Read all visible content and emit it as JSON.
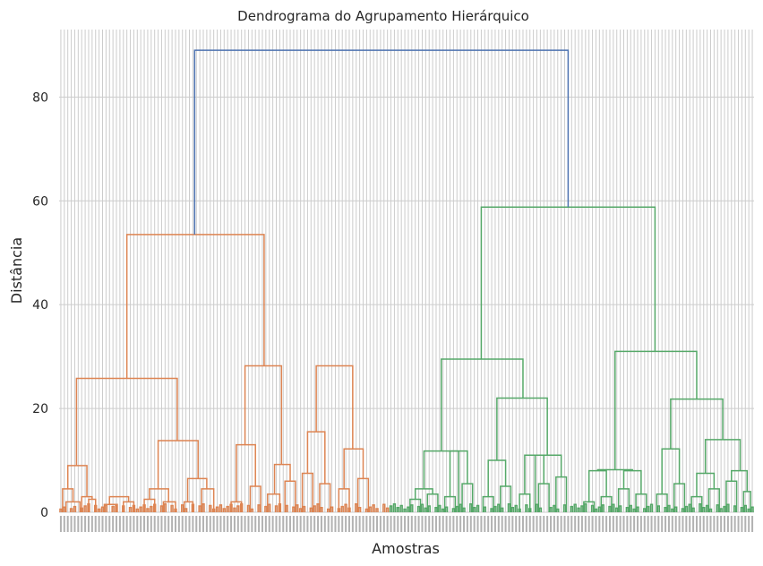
{
  "chart_data": {
    "type": "dendrogram",
    "title": "Dendrograma do Agrupamento Hierárquico",
    "xlabel": "Amostras",
    "ylabel": "Distância",
    "ylim": [
      0,
      93
    ],
    "yticks": [
      0,
      20,
      40,
      60,
      80
    ],
    "grid": true,
    "leaf_count": 200,
    "colors": {
      "cluster_orange": "#dd8452",
      "cluster_green": "#55a868",
      "above_threshold": "#4c72b0",
      "grid": "#cccccc"
    },
    "merges": [
      {
        "x": [
          4,
          12
        ],
        "h": 2,
        "c": "#dd8452"
      },
      {
        "x": [
          2,
          8
        ],
        "h": 4.5,
        "c": "#dd8452"
      },
      {
        "x": [
          17,
          21
        ],
        "h": 2.5,
        "c": "#dd8452"
      },
      {
        "x": [
          13,
          19
        ],
        "h": 3,
        "c": "#dd8452"
      },
      {
        "x": [
          26,
          33
        ],
        "h": 1.5,
        "c": "#dd8452"
      },
      {
        "x": [
          37,
          43
        ],
        "h": 2,
        "c": "#dd8452"
      },
      {
        "x": [
          29,
          40
        ],
        "h": 3,
        "c": "#dd8452"
      },
      {
        "x": [
          5,
          16
        ],
        "h": 9,
        "c": "#dd8452"
      },
      {
        "x": [
          49,
          55
        ],
        "h": 2.5,
        "c": "#dd8452"
      },
      {
        "x": [
          60,
          67
        ],
        "h": 2,
        "c": "#dd8452"
      },
      {
        "x": [
          52,
          63
        ],
        "h": 4.5,
        "c": "#dd8452"
      },
      {
        "x": [
          72,
          77
        ],
        "h": 2,
        "c": "#dd8452"
      },
      {
        "x": [
          82,
          89
        ],
        "h": 4.5,
        "c": "#dd8452"
      },
      {
        "x": [
          74,
          85
        ],
        "h": 6.5,
        "c": "#dd8452"
      },
      {
        "x": [
          57,
          80
        ],
        "h": 13.8,
        "c": "#dd8452"
      },
      {
        "x": [
          10,
          68
        ],
        "h": 25.8,
        "c": "#dd8452"
      },
      {
        "x": [
          99,
          105
        ],
        "h": 2,
        "c": "#dd8452"
      },
      {
        "x": [
          110,
          116
        ],
        "h": 5,
        "c": "#dd8452"
      },
      {
        "x": [
          102,
          113
        ],
        "h": 13,
        "c": "#dd8452"
      },
      {
        "x": [
          120,
          127
        ],
        "h": 3.5,
        "c": "#dd8452"
      },
      {
        "x": [
          130,
          136
        ],
        "h": 6,
        "c": "#dd8452"
      },
      {
        "x": [
          124,
          133
        ],
        "h": 9.2,
        "c": "#dd8452"
      },
      {
        "x": [
          107,
          128
        ],
        "h": 28.2,
        "c": "#dd8452"
      },
      {
        "x": [
          140,
          146
        ],
        "h": 7.5,
        "c": "#dd8452"
      },
      {
        "x": [
          150,
          156
        ],
        "h": 5.5,
        "c": "#dd8452"
      },
      {
        "x": [
          143,
          153
        ],
        "h": 15.5,
        "c": "#dd8452"
      },
      {
        "x": [
          161,
          167
        ],
        "h": 4.5,
        "c": "#dd8452"
      },
      {
        "x": [
          172,
          178
        ],
        "h": 6.5,
        "c": "#dd8452"
      },
      {
        "x": [
          164,
          175
        ],
        "h": 12.2,
        "c": "#dd8452"
      },
      {
        "x": [
          148,
          169
        ],
        "h": 28.2,
        "c": "#dd8452"
      },
      {
        "x": [
          39,
          118
        ],
        "h": 53.5,
        "c": "#dd8452"
      },
      {
        "x": [
          202,
          208
        ],
        "h": 2.5,
        "c": "#55a868"
      },
      {
        "x": [
          212,
          218
        ],
        "h": 3.5,
        "c": "#55a868"
      },
      {
        "x": [
          205,
          215
        ],
        "h": 4.5,
        "c": "#55a868"
      },
      {
        "x": [
          222,
          228
        ],
        "h": 3,
        "c": "#55a868"
      },
      {
        "x": [
          232,
          238
        ],
        "h": 5.5,
        "c": "#55a868"
      },
      {
        "x": [
          225,
          235
        ],
        "h": 11.8,
        "c": "#55a868"
      },
      {
        "x": [
          210,
          230
        ],
        "h": 11.8,
        "c": "#55a868"
      },
      {
        "x": [
          244,
          250
        ],
        "h": 3,
        "c": "#55a868"
      },
      {
        "x": [
          254,
          260
        ],
        "h": 5,
        "c": "#55a868"
      },
      {
        "x": [
          247,
          257
        ],
        "h": 10,
        "c": "#55a868"
      },
      {
        "x": [
          265,
          271
        ],
        "h": 3.5,
        "c": "#55a868"
      },
      {
        "x": [
          276,
          282
        ],
        "h": 5.5,
        "c": "#55a868"
      },
      {
        "x": [
          268,
          279
        ],
        "h": 11,
        "c": "#55a868"
      },
      {
        "x": [
          286,
          292
        ],
        "h": 6.8,
        "c": "#55a868"
      },
      {
        "x": [
          274,
          289
        ],
        "h": 11,
        "c": "#55a868"
      },
      {
        "x": [
          252,
          281
        ],
        "h": 22,
        "c": "#55a868"
      },
      {
        "x": [
          220,
          267
        ],
        "h": 29.5,
        "c": "#55a868"
      },
      {
        "x": [
          302,
          308
        ],
        "h": 2,
        "c": "#55a868"
      },
      {
        "x": [
          312,
          318
        ],
        "h": 3,
        "c": "#55a868"
      },
      {
        "x": [
          305,
          315
        ],
        "h": 8,
        "c": "#55a868"
      },
      {
        "x": [
          322,
          328
        ],
        "h": 4.5,
        "c": "#55a868"
      },
      {
        "x": [
          332,
          338
        ],
        "h": 3.5,
        "c": "#55a868"
      },
      {
        "x": [
          325,
          335
        ],
        "h": 8,
        "c": "#55a868"
      },
      {
        "x": [
          310,
          330
        ],
        "h": 8.2,
        "c": "#55a868"
      },
      {
        "x": [
          344,
          350
        ],
        "h": 3.5,
        "c": "#55a868"
      },
      {
        "x": [
          354,
          360
        ],
        "h": 5.5,
        "c": "#55a868"
      },
      {
        "x": [
          347,
          357
        ],
        "h": 12.2,
        "c": "#55a868"
      },
      {
        "x": [
          364,
          370
        ],
        "h": 3,
        "c": "#55a868"
      },
      {
        "x": [
          374,
          380
        ],
        "h": 4.5,
        "c": "#55a868"
      },
      {
        "x": [
          367,
          377
        ],
        "h": 7.5,
        "c": "#55a868"
      },
      {
        "x": [
          384,
          390
        ],
        "h": 6,
        "c": "#55a868"
      },
      {
        "x": [
          394,
          398
        ],
        "h": 4,
        "c": "#55a868"
      },
      {
        "x": [
          387,
          396
        ],
        "h": 8,
        "c": "#55a868"
      },
      {
        "x": [
          372,
          392
        ],
        "h": 14,
        "c": "#55a868"
      },
      {
        "x": [
          352,
          382
        ],
        "h": 21.8,
        "c": "#55a868"
      },
      {
        "x": [
          320,
          367
        ],
        "h": 31,
        "c": "#55a868"
      },
      {
        "x": [
          243,
          343
        ],
        "h": 58.8,
        "c": "#55a868"
      },
      {
        "x": [
          78,
          293
        ],
        "h": 89,
        "c": "#4c72b0"
      }
    ]
  }
}
